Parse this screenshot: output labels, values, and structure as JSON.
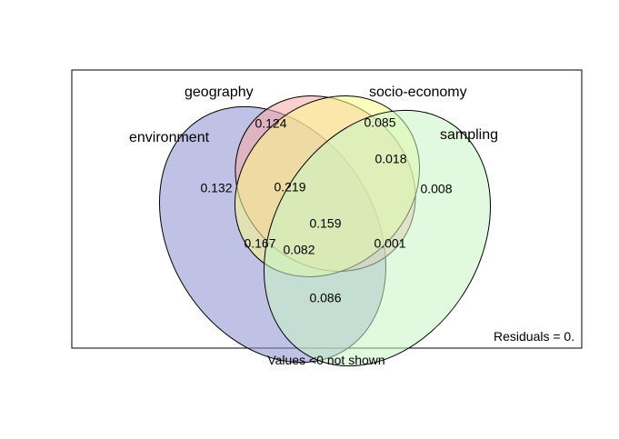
{
  "sets": [
    {
      "name": "environment",
      "fill": "#8d8fd0",
      "stroke": "#000000"
    },
    {
      "name": "geography",
      "fill": "#f6a8a6",
      "stroke": "#000000"
    },
    {
      "name": "socio-economy",
      "fill": "#fbfb8c",
      "stroke": "#000000"
    },
    {
      "name": "sampling",
      "fill": "#c8f6c4",
      "stroke": "#000000"
    }
  ],
  "regions": [
    {
      "sets": [
        "geography"
      ],
      "value": "0.124"
    },
    {
      "sets": [
        "socio-economy"
      ],
      "value": "0.085"
    },
    {
      "sets": [
        "environment"
      ],
      "value": "0.132"
    },
    {
      "sets": [
        "sampling"
      ],
      "value": "0.008"
    },
    {
      "sets": [
        "socio-economy",
        "sampling"
      ],
      "value": "0.018"
    },
    {
      "sets": [
        "environment",
        "geography",
        "socio-economy"
      ],
      "value": "0.219"
    },
    {
      "sets": [
        "environment",
        "geography",
        "socio-economy",
        "sampling"
      ],
      "value": "0.159"
    },
    {
      "sets": [
        "environment",
        "socio-economy"
      ],
      "value": "0.167"
    },
    {
      "sets": [
        "environment",
        "socio-economy",
        "sampling"
      ],
      "value": "0.082"
    },
    {
      "sets": [
        "geography",
        "socio-economy",
        "sampling"
      ],
      "value": "0.001"
    },
    {
      "sets": [
        "environment",
        "sampling"
      ],
      "value": "0.086"
    }
  ],
  "residuals_text": "Residuals = 0.",
  "footnote": "Values <0 not shown"
}
